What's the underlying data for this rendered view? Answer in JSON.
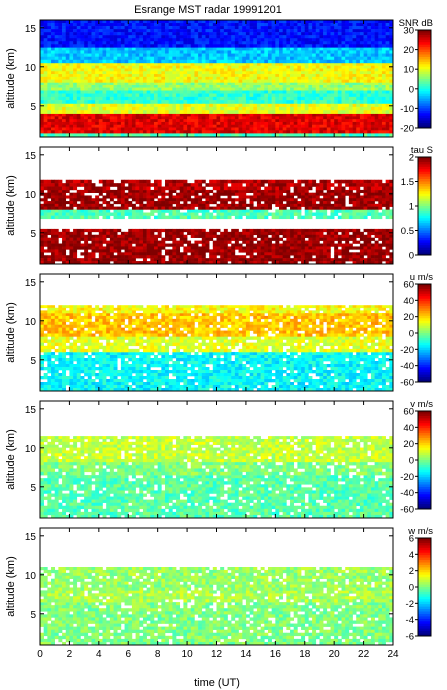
{
  "title": "Esrange MST radar 19991201",
  "xlabel": "time (UT)",
  "chart_data": [
    {
      "type": "heatmap",
      "ylabel": "altitude (km)",
      "colorbar_label": "SNR dB",
      "clim": [
        -20,
        30
      ],
      "colorbar_ticks": [
        "30",
        "20",
        "10",
        "0",
        "-10",
        "-20"
      ],
      "xlim": [
        0,
        24
      ],
      "ylim": [
        1,
        16
      ],
      "yticks": [
        "15",
        "10",
        "5"
      ],
      "layers": [
        {
          "alt": [
            1,
            1.5
          ],
          "level": 2
        },
        {
          "alt": [
            1.5,
            4
          ],
          "level": 25
        },
        {
          "alt": [
            4,
            5.3
          ],
          "level": 10
        },
        {
          "alt": [
            5.3,
            7
          ],
          "level": 1
        },
        {
          "alt": [
            7,
            8
          ],
          "level": 6
        },
        {
          "alt": [
            8,
            10.5
          ],
          "level": 11
        },
        {
          "alt": [
            10.5,
            12.5
          ],
          "level": -4
        },
        {
          "alt": [
            12.5,
            16
          ],
          "level": -13
        }
      ]
    },
    {
      "type": "heatmap",
      "ylabel": "altitude (km)",
      "colorbar_label": "tau S",
      "clim": [
        0,
        2
      ],
      "colorbar_ticks": [
        "2",
        "1.5",
        "1",
        "0.5",
        "0"
      ],
      "xlim": [
        0,
        24
      ],
      "ylim": [
        1,
        16
      ],
      "yticks": [
        "15",
        "10",
        "5"
      ],
      "layers": [
        {
          "alt": [
            1,
            5.5
          ],
          "level": 1.95
        },
        {
          "alt": [
            5.5,
            6.8
          ],
          "level": null
        },
        {
          "alt": [
            6.8,
            8
          ],
          "level": 0.9
        },
        {
          "alt": [
            8,
            10.5
          ],
          "level": 1.95
        },
        {
          "alt": [
            10.5,
            11.8
          ],
          "level": 1.9
        }
      ]
    },
    {
      "type": "heatmap",
      "ylabel": "altitude (km)",
      "colorbar_label": "u m/s",
      "clim": [
        -60,
        60
      ],
      "colorbar_ticks": [
        "60",
        "40",
        "20",
        "0",
        "-20",
        "-40",
        "-60"
      ],
      "xlim": [
        0,
        24
      ],
      "ylim": [
        1,
        16
      ],
      "yticks": [
        "15",
        "10",
        "5"
      ],
      "layers": [
        {
          "alt": [
            1,
            6
          ],
          "level": -15
        },
        {
          "alt": [
            6,
            8
          ],
          "level": 12
        },
        {
          "alt": [
            8,
            11
          ],
          "level": 22
        },
        {
          "alt": [
            11,
            12
          ],
          "level": 15
        }
      ]
    },
    {
      "type": "heatmap",
      "ylabel": "altitude (km)",
      "colorbar_label": "v m/s",
      "clim": [
        -60,
        60
      ],
      "colorbar_ticks": [
        "60",
        "40",
        "20",
        "0",
        "-20",
        "-40",
        "-60"
      ],
      "xlim": [
        0,
        24
      ],
      "ylim": [
        1,
        16
      ],
      "yticks": [
        "15",
        "10",
        "5"
      ],
      "layers": [
        {
          "alt": [
            1,
            6.5
          ],
          "level": -5
        },
        {
          "alt": [
            6.5,
            8.2
          ],
          "level": 0
        },
        {
          "alt": [
            8.2,
            11.5
          ],
          "level": 8
        }
      ]
    },
    {
      "type": "heatmap",
      "ylabel": "altitude (km)",
      "colorbar_label": "w m/s",
      "clim": [
        -6,
        6
      ],
      "colorbar_ticks": [
        "6",
        "4",
        "2",
        "0",
        "-2",
        "-4",
        "-6"
      ],
      "xlim": [
        0,
        24
      ],
      "ylim": [
        1,
        16
      ],
      "yticks": [
        "15",
        "10",
        "5"
      ],
      "layers": [
        {
          "alt": [
            1,
            6.5
          ],
          "level": 0
        },
        {
          "alt": [
            6.5,
            8
          ],
          "level": 0.5
        },
        {
          "alt": [
            8,
            11
          ],
          "level": 0.3
        }
      ]
    }
  ],
  "xticks": [
    "0",
    "2",
    "4",
    "6",
    "8",
    "10",
    "12",
    "14",
    "16",
    "18",
    "20",
    "22",
    "24"
  ]
}
